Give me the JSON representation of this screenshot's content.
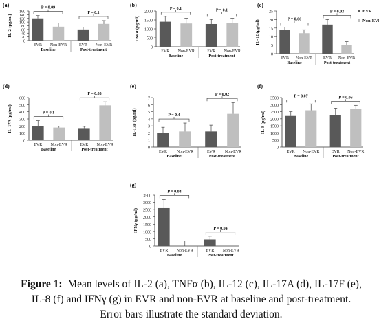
{
  "legend": {
    "items": [
      {
        "label": "EVR",
        "color": "#595959"
      },
      {
        "label": "Non-EVR",
        "color": "#bfbfbf"
      }
    ]
  },
  "caption": {
    "prefix": "Figure 1:",
    "text": "Mean levels of IL-2 (a), TNFα (b), IL-12 (c), IL-17A (d), IL-17F (e), IL-8 (f) and IFNγ (g) in EVR and non-EVR at baseline and post-treatment. Error bars illustrate the standard deviation."
  },
  "colors": {
    "evr": "#595959",
    "non_evr": "#bfbfbf"
  },
  "chart_data": [
    {
      "panel": "(a)",
      "type": "bar",
      "ylabel": "IL-2 (pg/ml)",
      "ylim": [
        0,
        160
      ],
      "yticks": [
        0,
        20,
        40,
        60,
        80,
        100,
        120,
        140,
        160
      ],
      "categories": [
        "EVR",
        "Non-EVR",
        "EVR",
        "Non-EVR"
      ],
      "groups": [
        "Baseline",
        "Post-treatment"
      ],
      "values": [
        120,
        75,
        60,
        90
      ],
      "errors": [
        15,
        20,
        12,
        18
      ],
      "pvalues": [
        "P = 0.09",
        "P = 0.1"
      ]
    },
    {
      "panel": "(b)",
      "type": "bar",
      "ylabel": "TNFα (pg/ml)",
      "ylim": [
        0,
        2000
      ],
      "yticks": [
        0,
        500,
        1000,
        1500,
        2000
      ],
      "categories": [
        "EVR",
        "Non-EVR",
        "EVR",
        "Non-EVR"
      ],
      "groups": [
        "Baseline",
        "Post-treatment"
      ],
      "values": [
        1400,
        1300,
        1270,
        1320
      ],
      "errors": [
        300,
        300,
        260,
        280
      ],
      "pvalues": [
        "P = 0.1",
        "P = 0.1"
      ]
    },
    {
      "panel": "(c)",
      "type": "bar",
      "ylabel": "IL-12 (pg/ml)",
      "ylim": [
        0,
        25
      ],
      "yticks": [
        0,
        5,
        10,
        15,
        20,
        25
      ],
      "categories": [
        "EVR",
        "Non-EVR",
        "EVR",
        "Non-EVR"
      ],
      "groups": [
        "Baseline",
        "Post-treatment"
      ],
      "values": [
        14,
        12,
        17,
        5
      ],
      "errors": [
        1.5,
        2,
        3,
        2
      ],
      "pvalues": [
        "P = 0.06",
        "P = 0.03"
      ]
    },
    {
      "panel": "(d)",
      "type": "bar",
      "ylabel": "IL-17A (pg/ml)",
      "ylim": [
        0,
        600
      ],
      "yticks": [
        0,
        100,
        200,
        300,
        400,
        500,
        600
      ],
      "categories": [
        "EVR",
        "Non-EVR",
        "EVR",
        "Non-EVR"
      ],
      "groups": [
        "Baseline",
        "Post-treatment"
      ],
      "values": [
        195,
        178,
        170,
        490
      ],
      "errors": [
        80,
        20,
        25,
        50
      ],
      "pvalues": [
        "P = 0.1",
        "P = 0.03"
      ]
    },
    {
      "panel": "(e)",
      "type": "bar",
      "ylabel": "IL-17F (pg/ml)",
      "ylim": [
        0,
        7
      ],
      "yticks": [
        0,
        1,
        2,
        3,
        4,
        5,
        6,
        7
      ],
      "categories": [
        "EVR",
        "Non-EVR",
        "EVR",
        "Non-EVR"
      ],
      "groups": [
        "Baseline",
        "Post-treatment"
      ],
      "values": [
        2,
        2.2,
        2.2,
        4.7
      ],
      "errors": [
        0.8,
        1.2,
        0.9,
        1.6
      ],
      "pvalues": [
        "P = 0.4",
        "P = 0.02"
      ]
    },
    {
      "panel": "(f)",
      "type": "bar",
      "ylabel": "IL-8 (pg/ml)",
      "ylim": [
        0,
        3500
      ],
      "yticks": [
        0,
        500,
        1000,
        1500,
        2000,
        2500,
        3000,
        3500
      ],
      "categories": [
        "EVR",
        "Non-EVR",
        "EVR",
        "Non-EVR"
      ],
      "groups": [
        "Baseline",
        "Post-treatment"
      ],
      "values": [
        2200,
        2600,
        2250,
        2700
      ],
      "errors": [
        300,
        450,
        500,
        250
      ],
      "pvalues": [
        "P = 0.07",
        "P = 0.06"
      ]
    },
    {
      "panel": "(g)",
      "type": "bar",
      "ylabel": "IFNγ (pg/ml)",
      "ylim": [
        0,
        3500
      ],
      "yticks": [
        0,
        500,
        1000,
        1500,
        2000,
        2500,
        3000,
        3500
      ],
      "categories": [
        "EVR",
        "Non-EVR",
        "EVR",
        "Non-EVR"
      ],
      "groups": [
        "Baseline",
        "Post-treatment"
      ],
      "values": [
        2650,
        0,
        450,
        0
      ],
      "errors": [
        550,
        350,
        220,
        0
      ],
      "pvalues": [
        "P = 0.04",
        "P = 0.04"
      ]
    }
  ]
}
